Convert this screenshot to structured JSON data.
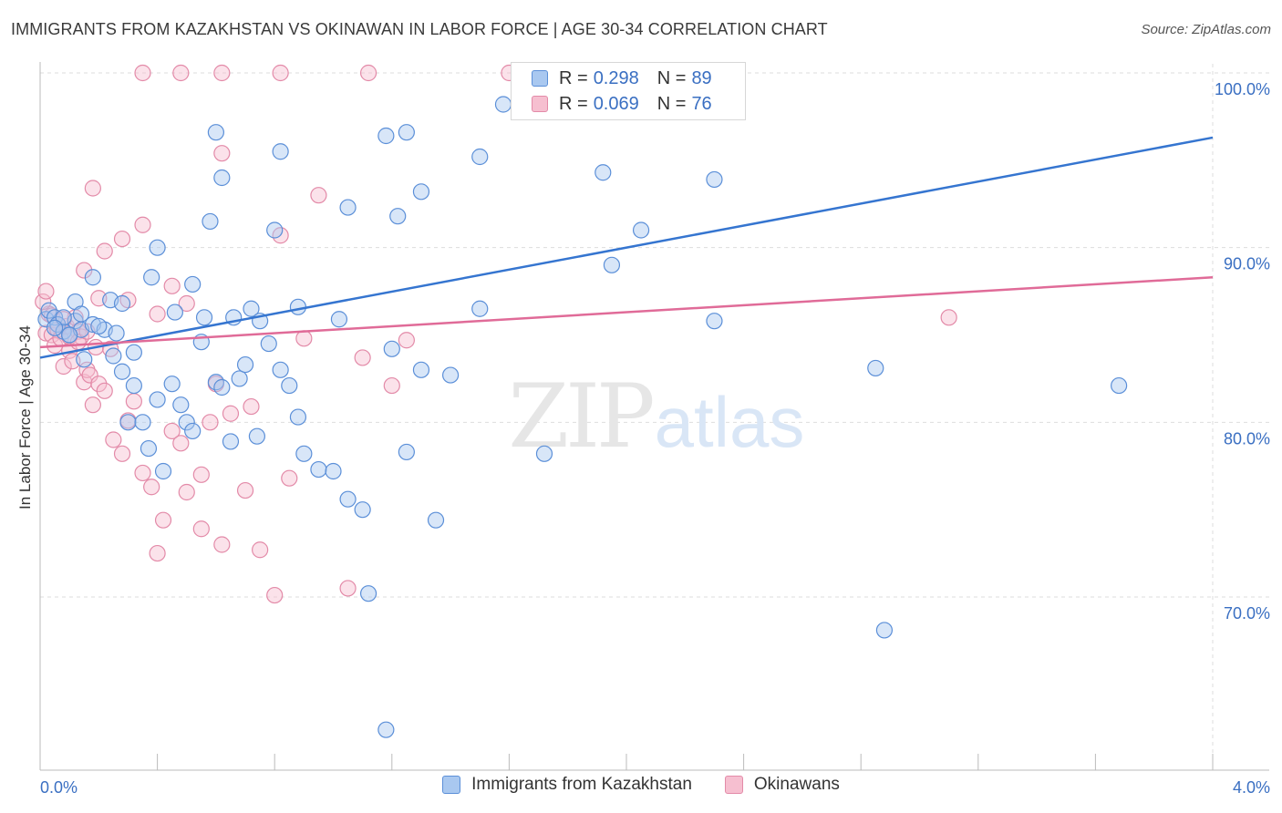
{
  "title": "IMMIGRANTS FROM KAZAKHSTAN VS OKINAWAN IN LABOR FORCE | AGE 30-34 CORRELATION CHART",
  "source": "Source: ZipAtlas.com",
  "watermark": {
    "zip": "ZIP",
    "atlas": "atlas"
  },
  "legend_top": [
    {
      "r_label": "R =",
      "r_value": "0.298",
      "n_label": "N =",
      "n_value": "89"
    },
    {
      "r_label": "R =",
      "r_value": "0.069",
      "n_label": "N =",
      "n_value": "76"
    }
  ],
  "legend_bottom": [
    "Immigrants from Kazakhstan",
    "Okinawans"
  ],
  "colors": {
    "blue_fill": "#a9c8f0",
    "blue_stroke": "#5b8fd8",
    "blue_line": "#3575d0",
    "pink_fill": "#f6bfd0",
    "pink_stroke": "#e38aa8",
    "pink_line": "#e06b98",
    "tick_text": "#3a6fc2",
    "grid": "#dddddd"
  },
  "chart_data": {
    "type": "scatter",
    "title": "IMMIGRANTS FROM KAZAKHSTAN VS OKINAWAN IN LABOR FORCE | AGE 30-34 CORRELATION CHART",
    "xlabel": "",
    "ylabel": "In Labor Force | Age 30-34",
    "xlim": [
      0,
      4.0
    ],
    "ylim": [
      61.0,
      101.5
    ],
    "x_tick_labels": [
      {
        "value": 0,
        "label": "0.0%"
      },
      {
        "value": 4.0,
        "label": "4.0%"
      }
    ],
    "y_ticks": [
      {
        "value": 70,
        "label": "70.0%"
      },
      {
        "value": 80,
        "label": "80.0%"
      },
      {
        "value": 90,
        "label": "90.0%"
      },
      {
        "value": 100,
        "label": "100.0%"
      }
    ],
    "series": [
      {
        "name": "Immigrants from Kazakhstan",
        "color": "blue",
        "trend": {
          "x": [
            0.0,
            4.0
          ],
          "y": [
            83.7,
            96.3
          ]
        },
        "points": [
          [
            0.02,
            85.9
          ],
          [
            0.03,
            86.4
          ],
          [
            0.05,
            86.0
          ],
          [
            0.06,
            85.6
          ],
          [
            0.08,
            85.2
          ],
          [
            0.1,
            85.0
          ],
          [
            0.12,
            85.8
          ],
          [
            0.14,
            85.3
          ],
          [
            0.15,
            83.6
          ],
          [
            0.18,
            85.6
          ],
          [
            0.22,
            85.3
          ],
          [
            0.25,
            83.8
          ],
          [
            0.28,
            82.9
          ],
          [
            0.3,
            80.0
          ],
          [
            0.32,
            82.1
          ],
          [
            0.35,
            80.0
          ],
          [
            0.37,
            78.5
          ],
          [
            0.4,
            81.3
          ],
          [
            0.42,
            77.2
          ],
          [
            0.45,
            82.2
          ],
          [
            0.48,
            81.0
          ],
          [
            0.5,
            80.0
          ],
          [
            0.52,
            79.5
          ],
          [
            0.55,
            84.6
          ],
          [
            0.56,
            86.0
          ],
          [
            0.6,
            82.3
          ],
          [
            0.62,
            82.0
          ],
          [
            0.65,
            78.9
          ],
          [
            0.68,
            82.5
          ],
          [
            0.7,
            83.3
          ],
          [
            0.72,
            86.5
          ],
          [
            0.74,
            79.2
          ],
          [
            0.75,
            85.8
          ],
          [
            0.78,
            84.5
          ],
          [
            0.82,
            83.0
          ],
          [
            0.85,
            82.1
          ],
          [
            0.88,
            80.3
          ],
          [
            0.9,
            78.2
          ],
          [
            0.95,
            77.3
          ],
          [
            1.0,
            77.2
          ],
          [
            1.05,
            75.6
          ],
          [
            1.1,
            75.0
          ],
          [
            1.12,
            70.2
          ],
          [
            1.18,
            62.4
          ],
          [
            1.2,
            84.2
          ],
          [
            1.25,
            78.3
          ],
          [
            1.3,
            83.0
          ],
          [
            1.35,
            74.4
          ],
          [
            1.4,
            82.7
          ],
          [
            1.5,
            86.5
          ],
          [
            0.24,
            87.0
          ],
          [
            0.28,
            86.8
          ],
          [
            0.38,
            88.3
          ],
          [
            0.52,
            87.9
          ],
          [
            0.12,
            86.9
          ],
          [
            0.26,
            85.1
          ],
          [
            0.46,
            86.3
          ],
          [
            0.66,
            86.0
          ],
          [
            0.88,
            86.6
          ],
          [
            1.02,
            85.9
          ],
          [
            0.18,
            88.3
          ],
          [
            0.4,
            90.0
          ],
          [
            0.58,
            91.5
          ],
          [
            0.8,
            91.0
          ],
          [
            1.05,
            92.3
          ],
          [
            1.22,
            91.8
          ],
          [
            1.3,
            93.2
          ],
          [
            0.62,
            94.0
          ],
          [
            0.82,
            95.5
          ],
          [
            1.5,
            95.2
          ],
          [
            1.92,
            94.3
          ],
          [
            2.05,
            91.0
          ],
          [
            1.25,
            96.6
          ],
          [
            1.18,
            96.4
          ],
          [
            0.6,
            96.6
          ],
          [
            1.58,
            98.2
          ],
          [
            2.3,
            93.9
          ],
          [
            1.72,
            78.2
          ],
          [
            1.95,
            89.0
          ],
          [
            2.3,
            85.8
          ],
          [
            2.85,
            83.1
          ],
          [
            2.88,
            68.1
          ],
          [
            3.68,
            82.1
          ],
          [
            0.08,
            86.0
          ],
          [
            0.05,
            85.4
          ],
          [
            0.1,
            85.0
          ],
          [
            0.14,
            86.2
          ],
          [
            0.2,
            85.5
          ],
          [
            0.32,
            84.0
          ]
        ]
      },
      {
        "name": "Okinawans",
        "color": "pink",
        "trend": {
          "x": [
            0.0,
            4.0
          ],
          "y": [
            84.3,
            88.3
          ]
        },
        "points": [
          [
            0.02,
            85.1
          ],
          [
            0.03,
            86.2
          ],
          [
            0.04,
            85.0
          ],
          [
            0.05,
            84.4
          ],
          [
            0.06,
            85.3
          ],
          [
            0.07,
            84.8
          ],
          [
            0.08,
            83.2
          ],
          [
            0.09,
            85.5
          ],
          [
            0.1,
            84.1
          ],
          [
            0.11,
            83.5
          ],
          [
            0.12,
            86.0
          ],
          [
            0.13,
            85.2
          ],
          [
            0.14,
            84.9
          ],
          [
            0.15,
            82.3
          ],
          [
            0.16,
            83.0
          ],
          [
            0.17,
            82.7
          ],
          [
            0.18,
            81.0
          ],
          [
            0.2,
            82.2
          ],
          [
            0.22,
            81.8
          ],
          [
            0.25,
            79.0
          ],
          [
            0.28,
            78.2
          ],
          [
            0.3,
            80.1
          ],
          [
            0.32,
            81.2
          ],
          [
            0.35,
            77.1
          ],
          [
            0.38,
            76.3
          ],
          [
            0.4,
            72.5
          ],
          [
            0.42,
            74.4
          ],
          [
            0.45,
            79.5
          ],
          [
            0.48,
            78.8
          ],
          [
            0.5,
            76.0
          ],
          [
            0.55,
            77.0
          ],
          [
            0.58,
            80.0
          ],
          [
            0.6,
            82.2
          ],
          [
            0.62,
            73.0
          ],
          [
            0.65,
            80.5
          ],
          [
            0.7,
            76.1
          ],
          [
            0.75,
            72.7
          ],
          [
            0.8,
            70.1
          ],
          [
            0.85,
            76.8
          ],
          [
            0.9,
            84.8
          ],
          [
            1.05,
            70.5
          ],
          [
            1.1,
            83.7
          ],
          [
            1.2,
            82.1
          ],
          [
            1.25,
            84.7
          ],
          [
            0.15,
            88.7
          ],
          [
            0.22,
            89.8
          ],
          [
            0.28,
            90.5
          ],
          [
            0.35,
            91.3
          ],
          [
            0.4,
            86.2
          ],
          [
            0.5,
            86.8
          ],
          [
            0.18,
            93.4
          ],
          [
            0.2,
            87.1
          ],
          [
            0.3,
            87.0
          ],
          [
            0.45,
            87.8
          ],
          [
            0.62,
            95.4
          ],
          [
            0.82,
            90.7
          ],
          [
            0.95,
            93.0
          ],
          [
            0.01,
            86.9
          ],
          [
            0.02,
            87.5
          ],
          [
            0.04,
            86.1
          ],
          [
            0.06,
            85.6
          ],
          [
            0.08,
            85.9
          ],
          [
            0.1,
            84.9
          ],
          [
            0.13,
            84.6
          ],
          [
            0.16,
            85.2
          ],
          [
            0.19,
            84.3
          ],
          [
            0.24,
            84.2
          ],
          [
            0.35,
            100.0
          ],
          [
            0.48,
            100.0
          ],
          [
            0.62,
            100.0
          ],
          [
            0.82,
            100.0
          ],
          [
            1.12,
            100.0
          ],
          [
            1.6,
            100.0
          ],
          [
            3.1,
            86.0
          ],
          [
            0.72,
            80.9
          ],
          [
            0.55,
            73.9
          ]
        ]
      }
    ],
    "stats": [
      {
        "series": "Immigrants from Kazakhstan",
        "R": 0.298,
        "N": 89
      },
      {
        "series": "Okinawans",
        "R": 0.069,
        "N": 76
      }
    ]
  }
}
